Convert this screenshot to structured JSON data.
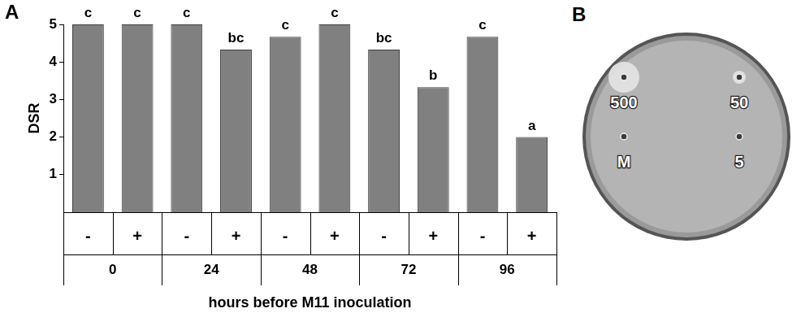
{
  "chart_data": {
    "type": "bar",
    "panel": "A",
    "y_label": "DSR",
    "x_label": "hours before M11 inoculation",
    "categories": [
      "-",
      "+",
      "-",
      "+",
      "-",
      "+",
      "-",
      "+",
      "-",
      "+"
    ],
    "groups": [
      "0",
      "24",
      "48",
      "72",
      "96"
    ],
    "values": [
      5,
      5,
      5,
      4.33,
      4.67,
      5,
      4.33,
      3.33,
      4.67,
      2
    ],
    "annotations": [
      "c",
      "c",
      "c",
      "bc",
      "c",
      "c",
      "bc",
      "b",
      "c",
      "a"
    ],
    "color": "#808080",
    "ylim": [
      0,
      5
    ],
    "yticks": [
      1,
      2,
      3,
      4,
      5
    ],
    "grid": false
  },
  "figure_b": {
    "panel": "B",
    "labels": [
      "500",
      "50",
      "M",
      "5"
    ]
  }
}
